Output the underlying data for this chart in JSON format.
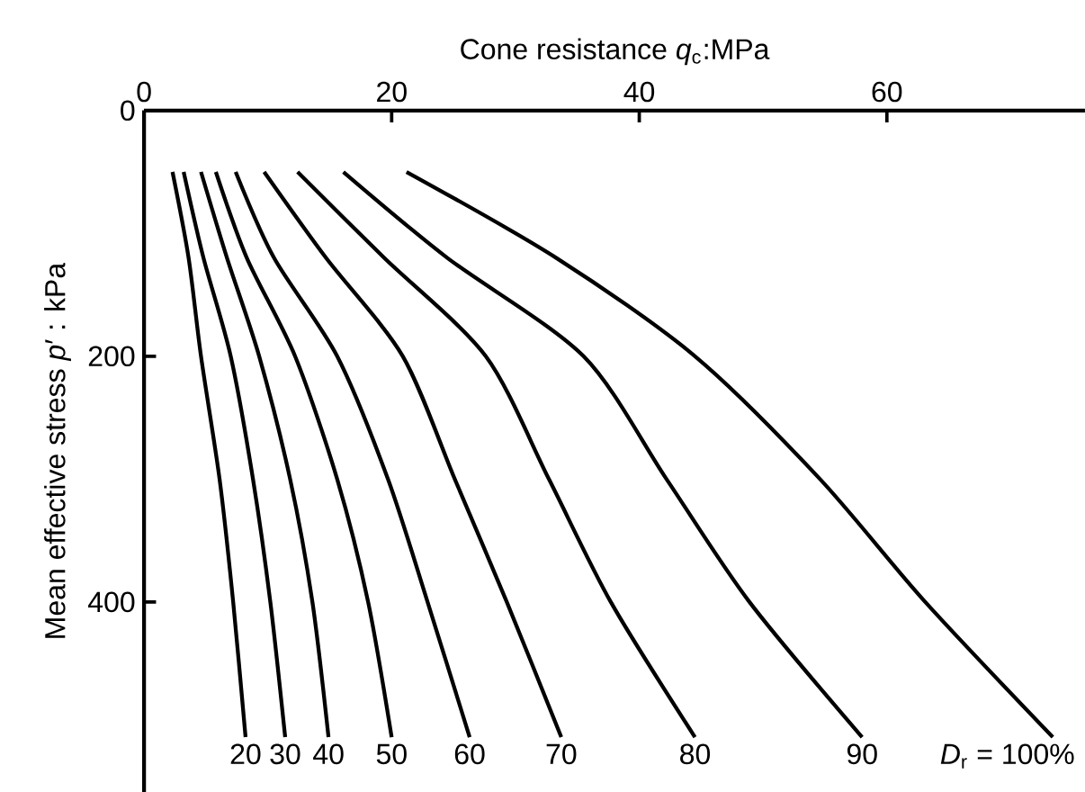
{
  "chart_data": {
    "type": "line",
    "xlabel": "Cone resistance *q*$_{c}$:MPa",
    "ylabel": "Mean effective stress *p*′ : kPa",
    "xlim": [
      0,
      76
    ],
    "ylim": [
      555,
      0
    ],
    "xticks": [
      0,
      20,
      40,
      60
    ],
    "yticks": [
      0,
      200,
      400
    ],
    "marker": "none",
    "line_style": "solid",
    "legend": false,
    "grid": false,
    "series": [
      {
        "name": "20",
        "color": "#000000",
        "x": [
          2.3,
          3.6,
          4.6,
          6.1,
          7.2,
          8.2
        ],
        "values": [
          50,
          120,
          200,
          300,
          400,
          510
        ]
      },
      {
        "name": "30",
        "color": "#000000",
        "x": [
          3.2,
          4.8,
          7.0,
          8.8,
          10.2,
          11.4
        ],
        "values": [
          50,
          120,
          200,
          300,
          400,
          510
        ]
      },
      {
        "name": "40",
        "color": "#000000",
        "x": [
          4.6,
          6.7,
          9.3,
          11.8,
          13.6,
          14.9
        ],
        "values": [
          50,
          120,
          200,
          300,
          400,
          510
        ]
      },
      {
        "name": "50",
        "color": "#000000",
        "x": [
          5.8,
          8.3,
          12.2,
          15.6,
          18.1,
          20.0
        ],
        "values": [
          50,
          120,
          200,
          300,
          400,
          510
        ]
      },
      {
        "name": "60",
        "color": "#000000",
        "x": [
          7.4,
          10.5,
          15.6,
          19.7,
          22.9,
          26.3
        ],
        "values": [
          50,
          120,
          200,
          300,
          400,
          510
        ]
      },
      {
        "name": "70",
        "color": "#000000",
        "x": [
          9.7,
          14.7,
          20.9,
          25.1,
          29.3,
          33.7
        ],
        "values": [
          50,
          120,
          200,
          300,
          400,
          510
        ]
      },
      {
        "name": "80",
        "color": "#000000",
        "x": [
          12.4,
          19.4,
          27.6,
          32.7,
          37.7,
          44.5
        ],
        "values": [
          50,
          120,
          200,
          300,
          400,
          510
        ]
      },
      {
        "name": "90",
        "color": "#000000",
        "x": [
          16.1,
          24.5,
          35.5,
          42.2,
          48.9,
          58.0
        ],
        "values": [
          50,
          120,
          200,
          300,
          400,
          510
        ]
      },
      {
        "name": "*D*$_{r}$ = 100%",
        "color": "#000000",
        "x": [
          21.2,
          33.3,
          44.5,
          54.6,
          63.1,
          73.4
        ],
        "values": [
          50,
          120,
          200,
          300,
          400,
          510
        ]
      }
    ]
  }
}
